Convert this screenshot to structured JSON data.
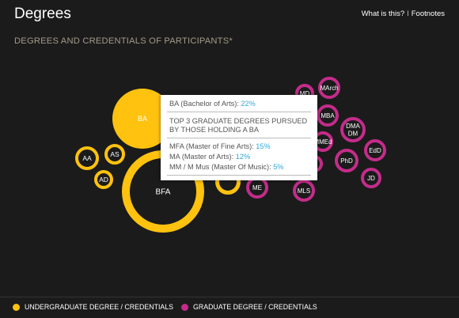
{
  "header": {
    "title": "Degrees",
    "link_what": "What is this?",
    "link_sep": "I",
    "link_footnotes": "Footnotes"
  },
  "subtitle": "DEGREES AND CREDENTIALS OF PARTICIPANTS*",
  "colors": {
    "undergrad": "#ffc20e",
    "grad": "#c42c8a",
    "background": "#1b1b1b",
    "accent": "#2fa8dc"
  },
  "bubbles": [
    {
      "label": "BA",
      "kind": "filled",
      "group": "undergrad"
    },
    {
      "label": "BFA",
      "kind": "ring",
      "group": "undergrad"
    },
    {
      "label": "AA",
      "kind": "ring",
      "group": "undergrad"
    },
    {
      "label": "AS",
      "kind": "ring",
      "group": "undergrad"
    },
    {
      "label": "AD",
      "kind": "ring",
      "group": "undergrad"
    },
    {
      "label": "",
      "kind": "ring",
      "group": "undergrad"
    },
    {
      "label": "MD",
      "kind": "ring",
      "group": "grad"
    },
    {
      "label": "MArch",
      "kind": "ring",
      "group": "grad"
    },
    {
      "label": "MBA",
      "kind": "ring",
      "group": "grad"
    },
    {
      "label": "DMA\nDM",
      "kind": "ring",
      "group": "grad"
    },
    {
      "label": "MMEd",
      "kind": "ring",
      "group": "grad"
    },
    {
      "label": "EdD",
      "kind": "ring",
      "group": "grad"
    },
    {
      "label": "PhD",
      "kind": "ring",
      "group": "grad"
    },
    {
      "label": "JD",
      "kind": "ring",
      "group": "grad"
    },
    {
      "label": "MLS",
      "kind": "ring",
      "group": "grad"
    },
    {
      "label": "ME",
      "kind": "ring",
      "group": "grad"
    },
    {
      "label": "",
      "kind": "ring",
      "group": "grad"
    }
  ],
  "tooltip": {
    "degree_label": "BA (Bachelor of Arts): ",
    "degree_pct": "22%",
    "heading": "TOP 3 GRADUATE DEGREES PURSUED BY THOSE HOLDING A BA",
    "items": [
      {
        "label": "MFA (Master of Fine Arts): ",
        "pct": "15%"
      },
      {
        "label": "MA (Master of Arts): ",
        "pct": "12%"
      },
      {
        "label": "MM / M Mus (Master Of Music): ",
        "pct": "5%"
      }
    ]
  },
  "legend": {
    "undergrad_label": "UNDERGRADUATE DEGREE / CREDENTIALS",
    "grad_label": "GRADUATE DEGREE / CREDENTIALS"
  }
}
